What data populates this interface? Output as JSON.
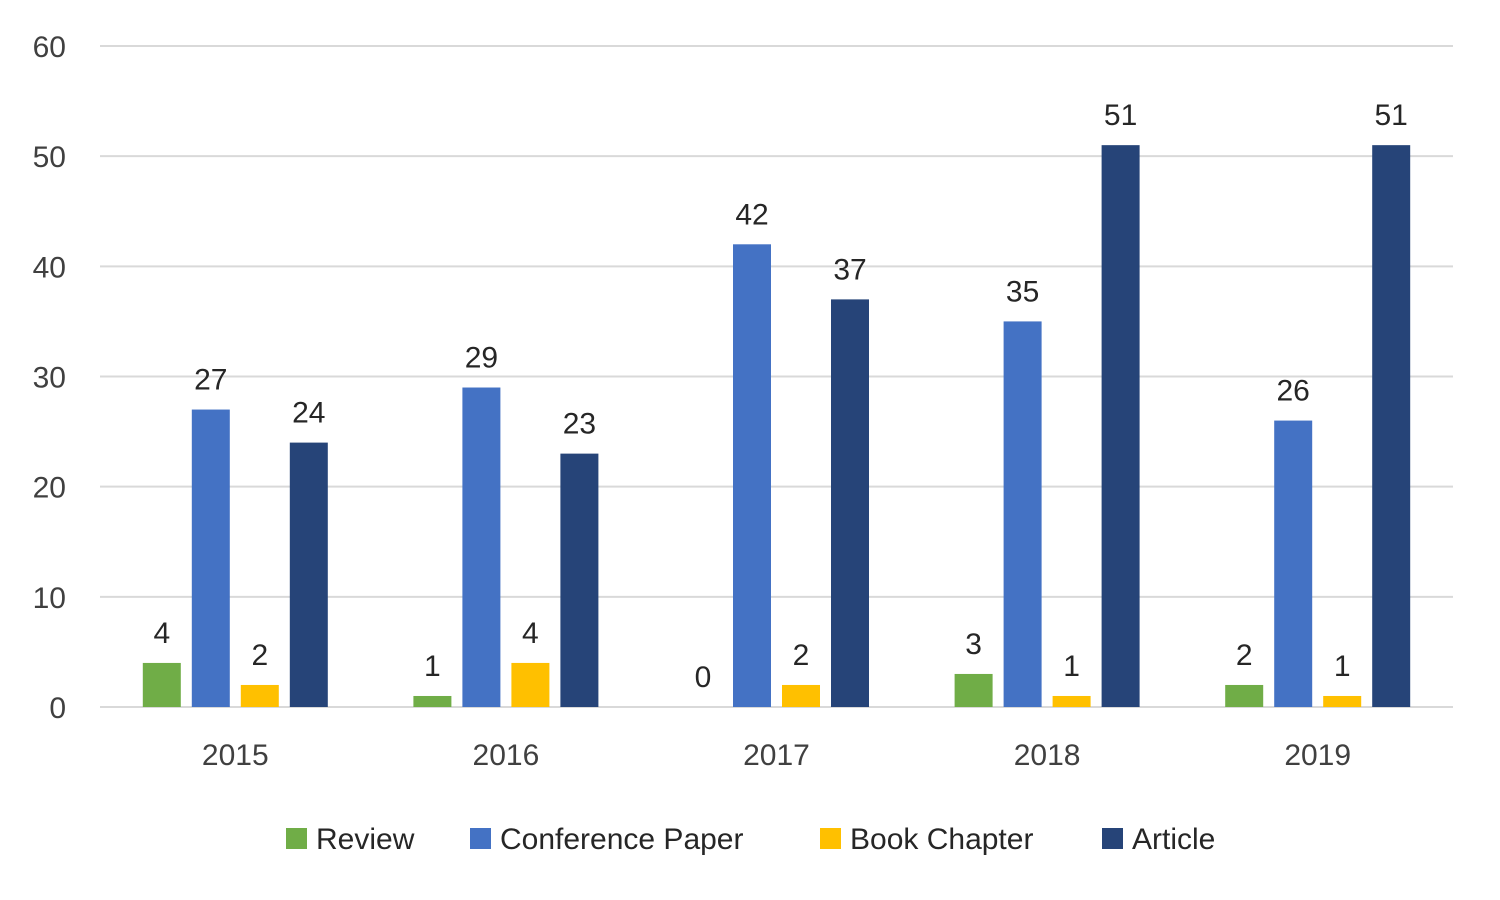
{
  "chart_data": {
    "type": "bar",
    "title": "",
    "xlabel": "",
    "ylabel": "",
    "categories": [
      "2015",
      "2016",
      "2017",
      "2018",
      "2019"
    ],
    "ylim": [
      0,
      60
    ],
    "yticks": [
      "0",
      "10",
      "20",
      "30",
      "40",
      "50",
      "60"
    ],
    "grid": true,
    "legend_position": "bottom",
    "series": [
      {
        "name": "Review",
        "color": "#70AD47",
        "values": [
          4,
          1,
          0,
          3,
          2
        ]
      },
      {
        "name": "Conference Paper",
        "color": "#4472C4",
        "values": [
          27,
          29,
          42,
          35,
          26
        ]
      },
      {
        "name": "Book Chapter",
        "color": "#FFC000",
        "values": [
          2,
          4,
          2,
          1,
          1
        ]
      },
      {
        "name": "Article",
        "color": "#264478",
        "values": [
          24,
          23,
          37,
          51,
          51
        ]
      }
    ]
  }
}
